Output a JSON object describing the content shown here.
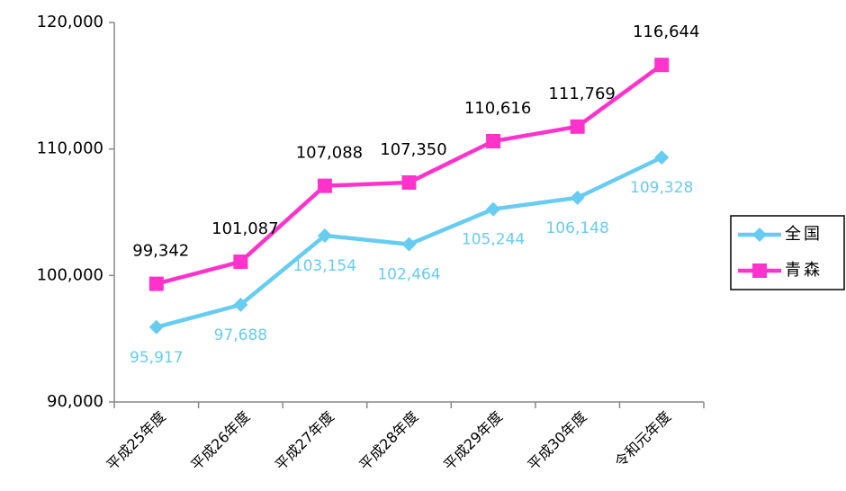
{
  "chart_data": {
    "type": "line",
    "categories": [
      "平成25年度",
      "平成26年度",
      "平成27年度",
      "平成28年度",
      "平成29年度",
      "平成30年度",
      "令和元年度"
    ],
    "series": [
      {
        "name": "全国",
        "color": "#66ccf2",
        "marker": "diamond",
        "label_color": "#66ccf2",
        "values": [
          95917,
          97688,
          103154,
          102464,
          105244,
          106148,
          109328
        ],
        "value_labels": [
          "95,917",
          "97,688",
          "103,154",
          "102,464",
          "105,244",
          "106,148",
          "109,328"
        ]
      },
      {
        "name": "青森",
        "color": "#ff33cc",
        "marker": "square",
        "label_color": "#000000",
        "values": [
          99342,
          101087,
          107088,
          107350,
          110616,
          111769,
          116644
        ],
        "value_labels": [
          "99,342",
          "101,087",
          "107,088",
          "107,350",
          "110,616",
          "111,769",
          "116,644"
        ]
      }
    ],
    "ylim": [
      90000,
      120000
    ],
    "yticks": [
      {
        "value": 90000,
        "label": "90,000"
      },
      {
        "value": 100000,
        "label": "100,000"
      },
      {
        "value": 110000,
        "label": "110,000"
      },
      {
        "value": 120000,
        "label": "120,000"
      }
    ],
    "grid": false,
    "legend": "right"
  }
}
